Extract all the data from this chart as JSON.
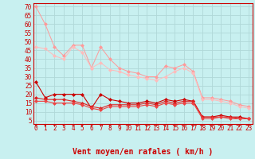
{
  "bg_color": "#c8f0f0",
  "grid_color": "#b0d8d8",
  "x_label": "Vent moyen/en rafales ( km/h )",
  "x_ticks": [
    0,
    1,
    2,
    3,
    4,
    5,
    6,
    7,
    8,
    9,
    10,
    11,
    12,
    13,
    14,
    15,
    16,
    17,
    18,
    19,
    20,
    21,
    22,
    23
  ],
  "y_ticks": [
    5,
    10,
    15,
    20,
    25,
    30,
    35,
    40,
    45,
    50,
    55,
    60,
    65,
    70
  ],
  "ylim": [
    3,
    72
  ],
  "xlim": [
    -0.3,
    23.4
  ],
  "line_light1": {
    "color": "#ff9999",
    "x": [
      0,
      1,
      2,
      3,
      4,
      5,
      6,
      7,
      8,
      9,
      10,
      11,
      12,
      13,
      14,
      15,
      16,
      17,
      18,
      19,
      20,
      21,
      22,
      23
    ],
    "y": [
      70,
      60,
      47,
      42,
      48,
      48,
      35,
      47,
      40,
      35,
      33,
      32,
      30,
      30,
      36,
      35,
      37,
      33,
      18,
      18,
      17,
      16,
      14,
      13
    ]
  },
  "line_light2": {
    "color": "#ffbbbb",
    "x": [
      0,
      1,
      2,
      3,
      4,
      5,
      6,
      7,
      8,
      9,
      10,
      11,
      12,
      13,
      14,
      15,
      16,
      17,
      18,
      19,
      20,
      21,
      22,
      23
    ],
    "y": [
      47,
      46,
      42,
      40,
      47,
      44,
      35,
      38,
      34,
      33,
      31,
      30,
      29,
      28,
      30,
      33,
      35,
      32,
      17,
      17,
      16,
      15,
      13,
      12
    ]
  },
  "line_dark1": {
    "color": "#cc0000",
    "x": [
      0,
      1,
      2,
      3,
      4,
      5,
      6,
      7,
      8,
      9,
      10,
      11,
      12,
      13,
      14,
      15,
      16,
      17,
      18,
      19,
      20,
      21,
      22,
      23
    ],
    "y": [
      27,
      18,
      20,
      20,
      20,
      20,
      12,
      20,
      17,
      16,
      15,
      15,
      16,
      15,
      17,
      16,
      17,
      16,
      7,
      7,
      8,
      7,
      7,
      6
    ]
  },
  "line_dark2": {
    "color": "#dd2222",
    "x": [
      0,
      1,
      2,
      3,
      4,
      5,
      6,
      7,
      8,
      9,
      10,
      11,
      12,
      13,
      14,
      15,
      16,
      17,
      18,
      19,
      20,
      21,
      22,
      23
    ],
    "y": [
      18,
      17,
      17,
      17,
      16,
      15,
      13,
      12,
      14,
      14,
      14,
      14,
      15,
      14,
      16,
      15,
      16,
      16,
      7,
      7,
      7,
      7,
      6,
      6
    ]
  },
  "line_dark3": {
    "color": "#ee4444",
    "x": [
      0,
      1,
      2,
      3,
      4,
      5,
      6,
      7,
      8,
      9,
      10,
      11,
      12,
      13,
      14,
      15,
      16,
      17,
      18,
      19,
      20,
      21,
      22,
      23
    ],
    "y": [
      16,
      16,
      15,
      15,
      15,
      14,
      12,
      11,
      13,
      13,
      13,
      13,
      14,
      13,
      15,
      14,
      15,
      15,
      6,
      6,
      7,
      6,
      6,
      6
    ]
  },
  "marker_size": 2.5,
  "tick_fontsize": 5.5,
  "label_fontsize": 7.0
}
